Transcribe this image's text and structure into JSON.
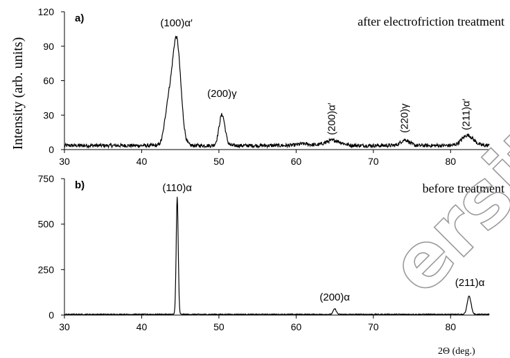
{
  "figure": {
    "ylabel": "Intensity (arb. units)",
    "xlabel": "2Θ (deg.)",
    "watermark": "ersity"
  },
  "chart_data": [
    {
      "type": "line",
      "panel_label": "a)",
      "annotation": "after electrofriction treatment",
      "xlim": [
        30,
        85
      ],
      "ylim": [
        0,
        120
      ],
      "xticks": [
        "30",
        "40",
        "50",
        "60",
        "70",
        "80"
      ],
      "yticks": [
        "0",
        "30",
        "60",
        "90",
        "120"
      ],
      "peak_labels": [
        {
          "text": "(100)α′",
          "x": 44.5,
          "vertical": false
        },
        {
          "text": "(200)γ",
          "x": 50.4,
          "vertical": false
        },
        {
          "text": "(200)α′",
          "x": 64.6,
          "vertical": true
        },
        {
          "text": "(220)γ",
          "x": 74.0,
          "vertical": true
        },
        {
          "text": "(211)α′",
          "x": 82.0,
          "vertical": true
        }
      ],
      "series": [
        {
          "baseline": 3.5,
          "noise": 1.6,
          "peaks": [
            {
              "center": 43.4,
              "height": 30,
              "width": 0.45
            },
            {
              "center": 44.5,
              "height": 93,
              "width": 0.55
            },
            {
              "center": 50.4,
              "height": 27,
              "width": 0.38
            },
            {
              "center": 61.0,
              "height": 1.5,
              "width": 0.8
            },
            {
              "center": 64.8,
              "height": 4.5,
              "width": 1.0
            },
            {
              "center": 74.1,
              "height": 5,
              "width": 0.55
            },
            {
              "center": 82.2,
              "height": 9,
              "width": 0.75
            }
          ]
        }
      ]
    },
    {
      "type": "line",
      "panel_label": "b)",
      "annotation": "before treatment",
      "xlim": [
        30,
        85
      ],
      "ylim": [
        0,
        750
      ],
      "xticks": [
        "30",
        "40",
        "50",
        "60",
        "70",
        "80"
      ],
      "yticks": [
        "0",
        "250",
        "500",
        "750"
      ],
      "peak_labels": [
        {
          "text": "(110)α",
          "x": 44.6,
          "vertical": false
        },
        {
          "text": "(200)α",
          "x": 65.0,
          "vertical": false
        },
        {
          "text": "(211)α",
          "x": 82.5,
          "vertical": false
        }
      ],
      "series": [
        {
          "baseline": 4,
          "noise": 2.5,
          "peaks": [
            {
              "center": 44.6,
              "height": 645,
              "width": 0.13
            },
            {
              "center": 65.0,
              "height": 30,
              "width": 0.2
            },
            {
              "center": 82.4,
              "height": 100,
              "width": 0.25
            }
          ]
        }
      ]
    }
  ]
}
